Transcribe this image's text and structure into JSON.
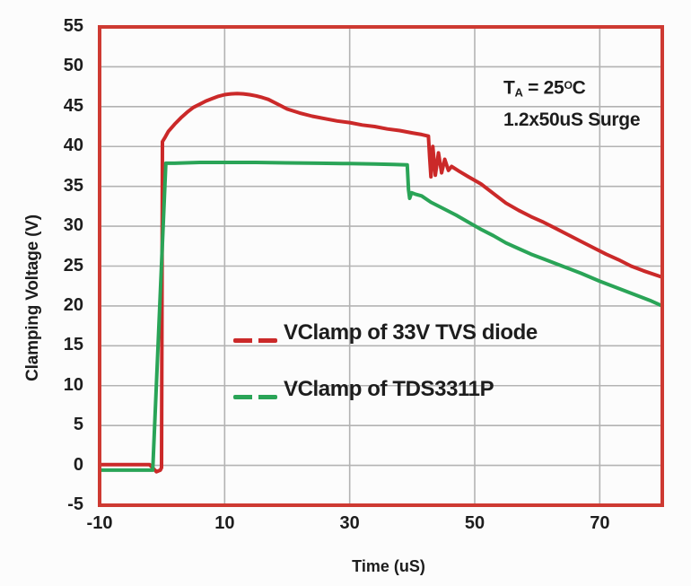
{
  "figure": {
    "background": "#fcfcfc",
    "border_color": "#ce3a32",
    "grid_color": "#b3b3b3",
    "text_color": "#1d1d1d"
  },
  "annotation": {
    "t_prefix": "T",
    "t_sub": "A",
    "t_mid": " = 25",
    "t_sup": "O",
    "t_unit": "C",
    "line2": "1.2x50uS Surge"
  },
  "chart_data": {
    "type": "line",
    "title": "",
    "xlabel": "Time (uS)",
    "ylabel": "Clamping Voltage (V)",
    "xlim": [
      -10,
      80
    ],
    "ylim": [
      -5,
      55
    ],
    "x_ticks": [
      -10,
      10,
      30,
      50,
      70
    ],
    "y_ticks": [
      55,
      50,
      45,
      40,
      35,
      30,
      25,
      20,
      15,
      10,
      5,
      0,
      -5
    ],
    "x_gridlines": [
      10,
      30,
      50,
      70
    ],
    "y_gridlines": [
      0,
      5,
      10,
      15,
      20,
      25,
      30,
      35,
      40,
      45,
      50
    ],
    "grid": true,
    "legend_position": "inside-center-left",
    "annotations": [
      "TA = 25°C",
      "1.2x50uS Surge"
    ],
    "series": [
      {
        "name": "VClamp of 33V TVS diode",
        "color": "#cb2929",
        "points": [
          [
            -10,
            0.1
          ],
          [
            -2,
            0.1
          ],
          [
            -1.4,
            -0.4
          ],
          [
            -0.9,
            -0.8
          ],
          [
            -0.3,
            -0.6
          ],
          [
            -0.1,
            -0.3
          ],
          [
            0.05,
            40.6
          ],
          [
            0.5,
            41.2
          ],
          [
            1,
            41.9
          ],
          [
            2,
            42.8
          ],
          [
            3,
            43.6
          ],
          [
            4,
            44.3
          ],
          [
            5,
            44.9
          ],
          [
            6,
            45.3
          ],
          [
            7,
            45.7
          ],
          [
            8,
            46.0
          ],
          [
            9,
            46.3
          ],
          [
            10,
            46.5
          ],
          [
            11,
            46.6
          ],
          [
            12,
            46.65
          ],
          [
            13,
            46.6
          ],
          [
            14,
            46.5
          ],
          [
            15,
            46.35
          ],
          [
            16,
            46.15
          ],
          [
            17,
            45.9
          ],
          [
            18,
            45.5
          ],
          [
            19,
            45.1
          ],
          [
            20,
            44.7
          ],
          [
            22,
            44.2
          ],
          [
            24,
            43.8
          ],
          [
            26,
            43.5
          ],
          [
            28,
            43.2
          ],
          [
            30,
            43.0
          ],
          [
            32,
            42.7
          ],
          [
            34,
            42.5
          ],
          [
            36,
            42.2
          ],
          [
            38,
            42.0
          ],
          [
            40,
            41.7
          ],
          [
            41.5,
            41.5
          ],
          [
            42.6,
            41.3
          ],
          [
            42.8,
            38.6
          ],
          [
            43.0,
            36.2
          ],
          [
            43.3,
            40.0
          ],
          [
            43.7,
            36.4
          ],
          [
            44.2,
            39.2
          ],
          [
            44.7,
            36.7
          ],
          [
            45.2,
            38.4
          ],
          [
            45.8,
            37.0
          ],
          [
            46.3,
            37.5
          ],
          [
            47.5,
            36.9
          ],
          [
            49,
            36.2
          ],
          [
            51,
            35.3
          ],
          [
            53,
            34.1
          ],
          [
            55,
            32.9
          ],
          [
            57,
            32.0
          ],
          [
            59,
            31.2
          ],
          [
            61,
            30.5
          ],
          [
            63,
            29.7
          ],
          [
            65,
            28.9
          ],
          [
            67,
            28.1
          ],
          [
            69,
            27.3
          ],
          [
            71,
            26.5
          ],
          [
            73,
            25.8
          ],
          [
            75,
            25.0
          ],
          [
            77,
            24.4
          ],
          [
            80,
            23.6
          ]
        ]
      },
      {
        "name": "VClamp of TDS3311P",
        "color": "#2aa457",
        "points": [
          [
            -10,
            -0.6
          ],
          [
            -1.5,
            -0.6
          ],
          [
            0.6,
            37.9
          ],
          [
            2,
            37.9
          ],
          [
            6,
            38.0
          ],
          [
            10,
            38.0
          ],
          [
            15,
            38.0
          ],
          [
            20,
            37.95
          ],
          [
            25,
            37.9
          ],
          [
            30,
            37.85
          ],
          [
            34,
            37.8
          ],
          [
            37,
            37.75
          ],
          [
            39.2,
            37.7
          ],
          [
            39.4,
            34.6
          ],
          [
            39.6,
            33.5
          ],
          [
            39.9,
            34.2
          ],
          [
            40.6,
            34.0
          ],
          [
            41.5,
            33.8
          ],
          [
            43,
            33.0
          ],
          [
            45,
            32.2
          ],
          [
            47,
            31.4
          ],
          [
            49,
            30.5
          ],
          [
            51,
            29.6
          ],
          [
            53,
            28.8
          ],
          [
            55,
            27.9
          ],
          [
            57,
            27.2
          ],
          [
            59,
            26.5
          ],
          [
            61,
            25.9
          ],
          [
            64,
            25.0
          ],
          [
            67,
            24.1
          ],
          [
            70,
            23.1
          ],
          [
            73,
            22.2
          ],
          [
            76,
            21.3
          ],
          [
            78,
            20.7
          ],
          [
            80,
            20.0
          ]
        ]
      }
    ]
  }
}
